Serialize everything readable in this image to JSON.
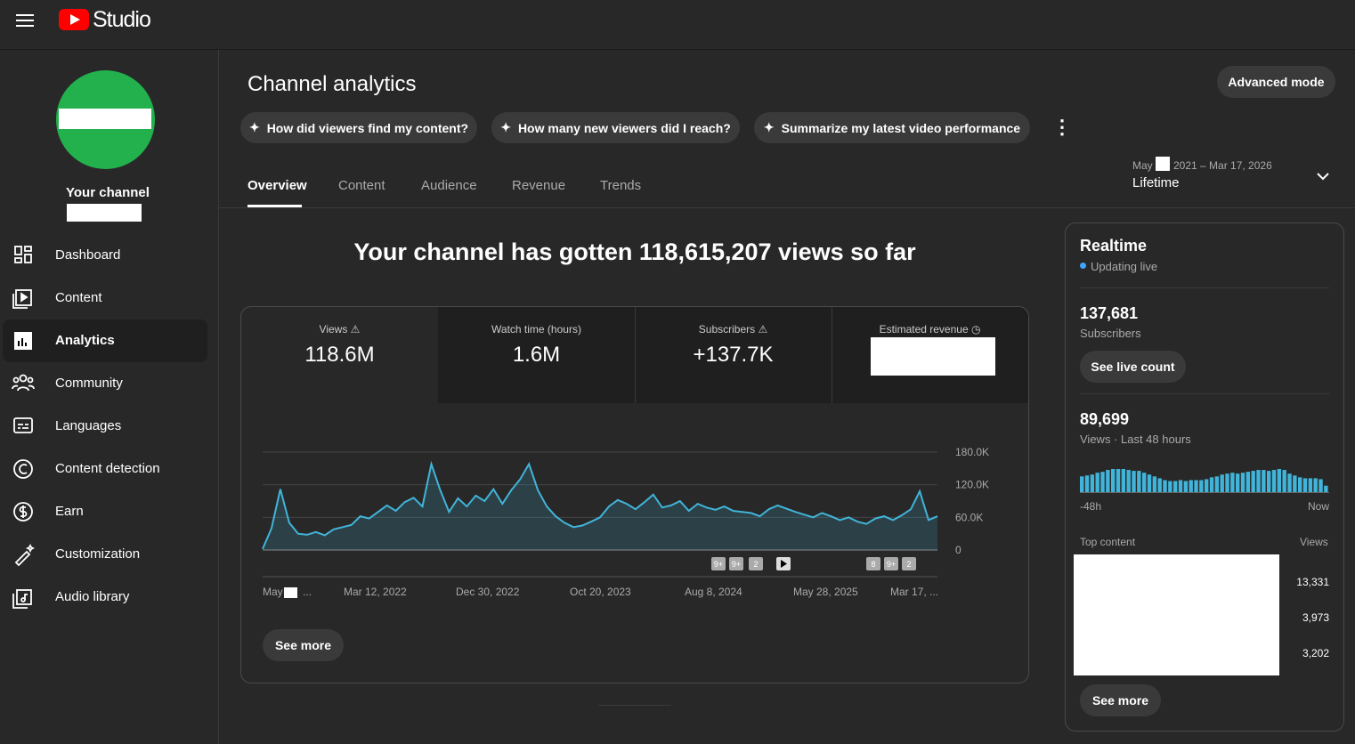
{
  "header": {
    "logo_text": "Studio"
  },
  "sidebar": {
    "channel_label": "Your channel",
    "items": [
      "Dashboard",
      "Content",
      "Analytics",
      "Community",
      "Languages",
      "Content detection",
      "Earn",
      "Customization",
      "Audio library"
    ]
  },
  "page": {
    "title": "Channel analytics",
    "advanced_button": "Advanced mode",
    "suggestions": [
      "How did viewers find my content?",
      "How many new viewers did I reach?",
      "Summarize my latest video performance"
    ],
    "tabs": [
      "Overview",
      "Content",
      "Audience",
      "Revenue",
      "Trends"
    ],
    "date_range": {
      "start_month": "May",
      "start_rest": "2021 – Mar 17, 2026",
      "period": "Lifetime"
    },
    "headline": "Your channel has gotten 118,615,207 views so far",
    "metrics": [
      {
        "label": "Views",
        "value": "118.6M"
      },
      {
        "label": "Watch time (hours)",
        "value": "1.6M"
      },
      {
        "label": "Subscribers",
        "value": "+137.7K"
      },
      {
        "label": "Estimated revenue"
      }
    ],
    "see_more": "See more"
  },
  "realtime": {
    "title": "Realtime",
    "status": "Updating live",
    "subscribers": "137,681",
    "subscribers_label": "Subscribers",
    "live_count_button": "See live count",
    "views": "89,699",
    "views_label": "Views · Last 48 hours",
    "top_content_label": "Top content",
    "top_content_views_label": "Views",
    "top_content_views": [
      "13,331",
      "3,973",
      "3,202"
    ],
    "see_more": "See more"
  },
  "chart_data": [
    {
      "type": "line",
      "color": "#41b4d9",
      "values": [
        2000,
        40000,
        112000,
        50000,
        30000,
        28000,
        33000,
        27000,
        38000,
        42000,
        46000,
        62000,
        58000,
        70000,
        82000,
        72000,
        88000,
        96000,
        80000,
        158000,
        110000,
        70000,
        95000,
        80000,
        100000,
        90000,
        112000,
        85000,
        110000,
        130000,
        158000,
        110000,
        80000,
        62000,
        50000,
        42000,
        45000,
        52000,
        60000,
        80000,
        92000,
        85000,
        75000,
        88000,
        102000,
        78000,
        82000,
        90000,
        72000,
        85000,
        78000,
        74000,
        80000,
        72000,
        70000,
        68000,
        62000,
        75000,
        82000,
        76000,
        70000,
        65000,
        60000,
        68000,
        62000,
        55000,
        60000,
        52000,
        48000,
        58000,
        62000,
        55000,
        64000,
        75000,
        108000,
        55000,
        62000
      ],
      "ylim": [
        0,
        180000
      ],
      "yticks": [
        0,
        {
          "value": 60000,
          "label": "60.0K"
        },
        {
          "value": 120000,
          "label": "120.0K"
        },
        {
          "value": 180000,
          "label": "180.0K"
        }
      ],
      "grid": true,
      "x_labels": [
        "May",
        "Mar 12, 2022",
        "Dec 30, 2022",
        "Oct 20, 2023",
        "Aug 8, 2024",
        "May 28, 2025",
        "Mar 17, ..."
      ],
      "first_label_suffix": "...",
      "annotations": [
        "9+",
        "9+",
        "2",
        "8",
        "9+",
        "2"
      ]
    },
    {
      "type": "bar",
      "color": "#41b4d9",
      "x_start_label": "-48h",
      "x_end_label": "Now",
      "values": [
        1700,
        1800,
        1900,
        2100,
        2200,
        2400,
        2500,
        2500,
        2500,
        2400,
        2300,
        2300,
        2100,
        1900,
        1700,
        1500,
        1300,
        1200,
        1200,
        1300,
        1200,
        1300,
        1300,
        1300,
        1400,
        1600,
        1700,
        1900,
        2000,
        2100,
        2000,
        2100,
        2200,
        2300,
        2400,
        2400,
        2300,
        2400,
        2500,
        2400,
        2000,
        1800,
        1600,
        1500,
        1500,
        1500,
        1400,
        700
      ]
    }
  ]
}
